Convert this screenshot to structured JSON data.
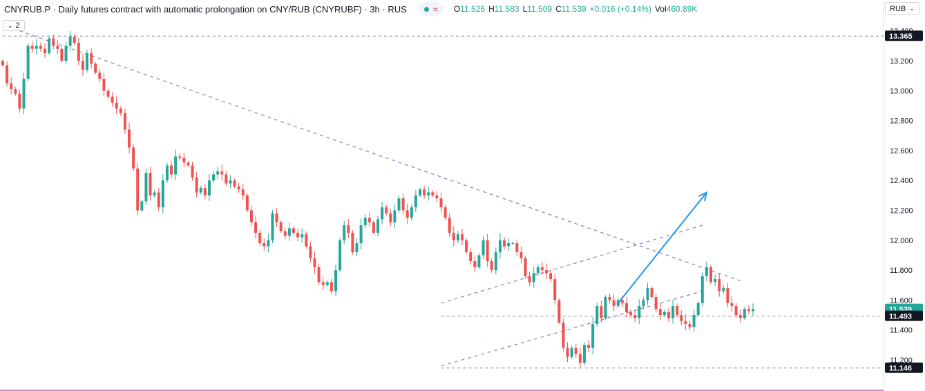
{
  "header": {
    "title": "CNYRUB.P · Daily futures contract with automatic prolongation on CNY/RUB (CNYRUBF) · 3h · RUS",
    "ohlc": {
      "o_label": "O",
      "o": "11.526",
      "h_label": "H",
      "h": "11.583",
      "l_label": "L",
      "l": "11.509",
      "c_label": "C",
      "c": "11.539",
      "change": "+0.016 (+0.14%)",
      "vol_label": "Vol",
      "vol": "460.89K"
    },
    "status_icons": [
      "market-open-dot",
      "wave-icon"
    ]
  },
  "currency": {
    "label": "RUB",
    "icon": "chevron-down-icon"
  },
  "collapse": {
    "label": "2",
    "icon": "chevron-down-icon"
  },
  "colors": {
    "up": "#26a69a",
    "down": "#ef5350",
    "price_label": "#26a69a",
    "level_label": "#131722",
    "dashed": "#8e7cc3",
    "arrow": "#2196f3"
  },
  "chart_data": {
    "type": "candlestick",
    "symbol": "CNYRUB.P",
    "interval": "3h",
    "ylim": [
      11.14,
      13.44
    ],
    "y_ticks": [
      "13.400",
      "13.200",
      "13.000",
      "12.800",
      "12.600",
      "12.400",
      "12.200",
      "12.000",
      "11.800",
      "11.600",
      "11.400",
      "11.200"
    ],
    "price_labels": [
      {
        "name": "last-price-label",
        "value": "11.539"
      },
      {
        "name": "level-label-high",
        "value": "13.365"
      },
      {
        "name": "level-label-mid",
        "value": "11.493"
      },
      {
        "name": "level-label-low",
        "value": "11.146"
      }
    ],
    "horizontal_levels": [
      13.365,
      11.493,
      11.146
    ],
    "trend_lines": [
      {
        "name": "long-downtrend-line",
        "points": [
          [
            4,
            13.4
          ],
          [
            175,
            11.73
          ]
        ]
      },
      {
        "name": "channel-upper-line",
        "points": [
          [
            104,
            11.58
          ],
          [
            166,
            12.1
          ]
        ]
      },
      {
        "name": "channel-lower-line",
        "points": [
          [
            104,
            11.16
          ],
          [
            166,
            11.66
          ]
        ]
      }
    ],
    "arrow": {
      "from": [
        146,
        11.58
      ],
      "to": [
        167,
        12.32
      ]
    },
    "closes": [
      13.17,
      13.05,
      13.01,
      12.98,
      12.88,
      13.08,
      13.3,
      13.28,
      13.3,
      13.28,
      13.25,
      13.35,
      13.3,
      13.28,
      13.2,
      13.3,
      13.36,
      13.32,
      13.2,
      13.14,
      13.25,
      13.18,
      13.12,
      13.08,
      13.0,
      12.96,
      12.92,
      12.88,
      12.85,
      12.74,
      12.62,
      12.48,
      12.2,
      12.26,
      12.45,
      12.3,
      12.32,
      12.22,
      12.4,
      12.5,
      12.44,
      12.56,
      12.55,
      12.52,
      12.5,
      12.42,
      12.32,
      12.35,
      12.3,
      12.4,
      12.44,
      12.46,
      12.44,
      12.38,
      12.4,
      12.36,
      12.34,
      12.3,
      12.2,
      12.12,
      12.05,
      11.98,
      11.96,
      12.0,
      12.18,
      12.12,
      12.06,
      12.03,
      12.08,
      12.05,
      12.02,
      12.04,
      11.96,
      11.88,
      11.82,
      11.72,
      11.7,
      11.72,
      11.66,
      11.8,
      12.0,
      12.1,
      12.05,
      11.92,
      11.98,
      12.1,
      12.15,
      12.12,
      12.05,
      12.14,
      12.22,
      12.18,
      12.12,
      12.2,
      12.28,
      12.2,
      12.15,
      12.22,
      12.3,
      12.34,
      12.3,
      12.32,
      12.3,
      12.28,
      12.22,
      12.15,
      12.05,
      12.0,
      12.04,
      12.0,
      11.92,
      11.86,
      11.82,
      11.9,
      12.0,
      11.86,
      11.8,
      11.92,
      12.0,
      11.96,
      11.98,
      11.98,
      11.92,
      11.88,
      11.76,
      11.72,
      11.78,
      11.82,
      11.8,
      11.78,
      11.74,
      11.6,
      11.45,
      11.28,
      11.22,
      11.28,
      11.24,
      11.18,
      11.3,
      11.28,
      11.44,
      11.56,
      11.48,
      11.62,
      11.6,
      11.56,
      11.6,
      11.58,
      11.52,
      11.5,
      11.48,
      11.56,
      11.6,
      11.68,
      11.62,
      11.54,
      11.5,
      11.52,
      11.48,
      11.56,
      11.5,
      11.46,
      11.44,
      11.42,
      11.5,
      11.58,
      11.76,
      11.82,
      11.72,
      11.74,
      11.66,
      11.68,
      11.58,
      11.56,
      11.5,
      11.48,
      11.54,
      11.526,
      11.539
    ]
  }
}
